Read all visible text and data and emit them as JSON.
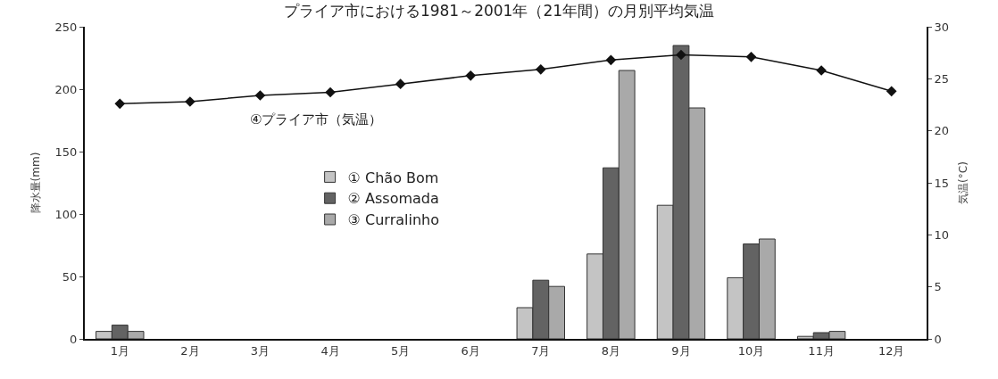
{
  "chart_data": {
    "type": "bar",
    "title": "プライア市における1981～2001年（21年間）の月別平均気温",
    "categories": [
      "1月",
      "2月",
      "3月",
      "4月",
      "5月",
      "6月",
      "7月",
      "8月",
      "9月",
      "10月",
      "11月",
      "12月"
    ],
    "series": [
      {
        "name": "① Chão Bom",
        "color": "#c4c4c4",
        "values": [
          6,
          0,
          0,
          0,
          0,
          0,
          25,
          68,
          107,
          49,
          2,
          0
        ]
      },
      {
        "name": "② Assomada",
        "color": "#636363",
        "values": [
          11,
          0,
          0,
          0,
          0,
          0,
          47,
          137,
          235,
          76,
          5,
          0
        ]
      },
      {
        "name": "③ Curralinho",
        "color": "#a9a9a9",
        "values": [
          6,
          0,
          0,
          0,
          0,
          0,
          42,
          215,
          185,
          80,
          6,
          0
        ]
      },
      {
        "name": "④プライア市（気温）",
        "type": "line",
        "axis": "y2",
        "color": "#111111",
        "marker": "diamond",
        "line_style": "solid",
        "values": [
          22.6,
          22.8,
          23.4,
          23.7,
          24.5,
          25.3,
          25.9,
          26.8,
          27.3,
          27.1,
          25.8,
          23.8
        ]
      }
    ],
    "ylabel": "降水量(mm)",
    "y2label": "気温(°C)",
    "ylim": [
      0,
      250
    ],
    "yticks": [
      0,
      50,
      100,
      150,
      200,
      250
    ],
    "y2lim": [
      0,
      30
    ],
    "y2ticks": [
      0,
      5,
      10,
      15,
      20,
      25,
      30
    ],
    "grid": false,
    "legend": "left"
  }
}
